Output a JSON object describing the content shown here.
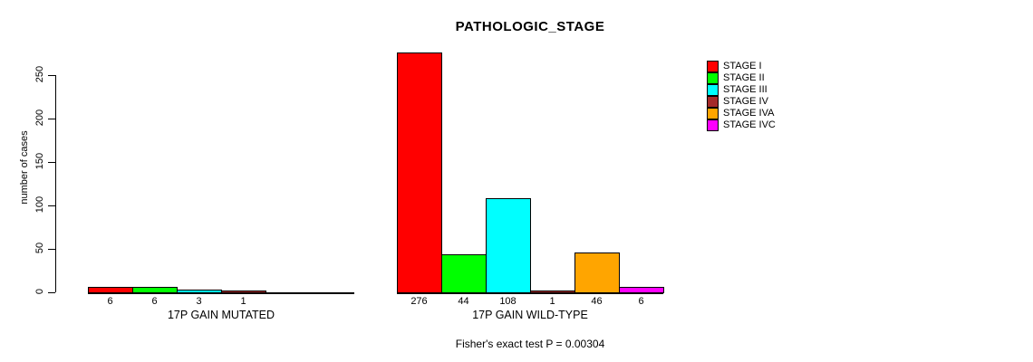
{
  "chart_data": {
    "type": "bar",
    "title": "PATHOLOGIC_STAGE",
    "ylabel": "number of cases",
    "footnote": "Fisher's exact test P = 0.00304",
    "yticks": [
      0,
      50,
      100,
      150,
      200,
      250
    ],
    "ylim": [
      0,
      276
    ],
    "grid": false,
    "legend": {
      "position": "right",
      "entries": [
        {
          "label": "STAGE I",
          "color": "#FF0000"
        },
        {
          "label": "STAGE II",
          "color": "#00FF00"
        },
        {
          "label": "STAGE III",
          "color": "#00FFFF"
        },
        {
          "label": "STAGE IV",
          "color": "#A52A2A"
        },
        {
          "label": "STAGE IVA",
          "color": "#FFA500"
        },
        {
          "label": "STAGE IVC",
          "color": "#FF00FF"
        }
      ]
    },
    "groups": [
      {
        "label": "17P GAIN MUTATED",
        "bars": [
          {
            "stage": "STAGE I",
            "value": 6,
            "color": "#FF0000"
          },
          {
            "stage": "STAGE II",
            "value": 6,
            "color": "#00FF00"
          },
          {
            "stage": "STAGE III",
            "value": 3,
            "color": "#00FFFF"
          },
          {
            "stage": "STAGE IV",
            "value": 1,
            "color": "#A52A2A"
          }
        ]
      },
      {
        "label": "17P GAIN WILD-TYPE",
        "bars": [
          {
            "stage": "STAGE I",
            "value": 276,
            "color": "#FF0000"
          },
          {
            "stage": "STAGE II",
            "value": 44,
            "color": "#00FF00"
          },
          {
            "stage": "STAGE III",
            "value": 108,
            "color": "#00FFFF"
          },
          {
            "stage": "STAGE IV",
            "value": 1,
            "color": "#A52A2A"
          },
          {
            "stage": "STAGE IVA",
            "value": 46,
            "color": "#FFA500"
          },
          {
            "stage": "STAGE IVC",
            "value": 6,
            "color": "#FF00FF"
          }
        ]
      }
    ]
  }
}
